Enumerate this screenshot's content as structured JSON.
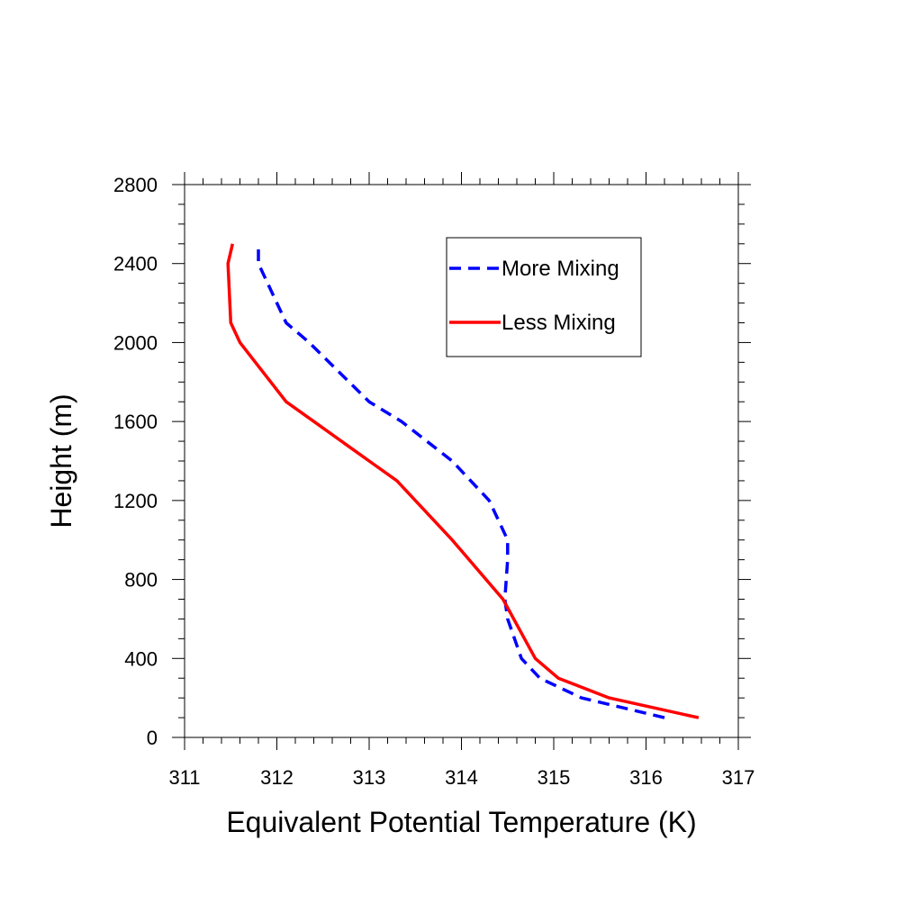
{
  "chart_data": {
    "type": "line",
    "title": "",
    "xlabel": "Equivalent Potential Temperature (K)",
    "ylabel": "Height (m)",
    "xlim": [
      311,
      317
    ],
    "ylim": [
      0,
      2800
    ],
    "xticks": [
      311,
      312,
      313,
      314,
      315,
      316,
      317
    ],
    "yticks": [
      0,
      400,
      800,
      1200,
      1600,
      2000,
      2400,
      2800
    ],
    "grid": false,
    "legend_position": "top-right",
    "series": [
      {
        "name": "More Mixing",
        "color": "#0000ff",
        "style": "dashed",
        "points": [
          [
            316.2,
            100
          ],
          [
            315.3,
            200
          ],
          [
            314.85,
            300
          ],
          [
            314.65,
            400
          ],
          [
            314.5,
            600
          ],
          [
            314.47,
            700
          ],
          [
            314.5,
            900
          ],
          [
            314.5,
            1000
          ],
          [
            314.3,
            1200
          ],
          [
            313.9,
            1400
          ],
          [
            313.35,
            1600
          ],
          [
            313.0,
            1700
          ],
          [
            312.35,
            2000
          ],
          [
            312.1,
            2100
          ],
          [
            311.8,
            2400
          ],
          [
            311.8,
            2500
          ]
        ]
      },
      {
        "name": "Less Mixing",
        "color": "#ff0000",
        "style": "solid",
        "points": [
          [
            316.57,
            100
          ],
          [
            315.6,
            200
          ],
          [
            315.05,
            300
          ],
          [
            314.8,
            400
          ],
          [
            314.45,
            700
          ],
          [
            313.9,
            1000
          ],
          [
            313.3,
            1300
          ],
          [
            313.0,
            1400
          ],
          [
            312.4,
            1600
          ],
          [
            312.1,
            1700
          ],
          [
            311.6,
            2000
          ],
          [
            311.5,
            2100
          ],
          [
            311.47,
            2400
          ],
          [
            311.52,
            2500
          ]
        ]
      }
    ]
  }
}
